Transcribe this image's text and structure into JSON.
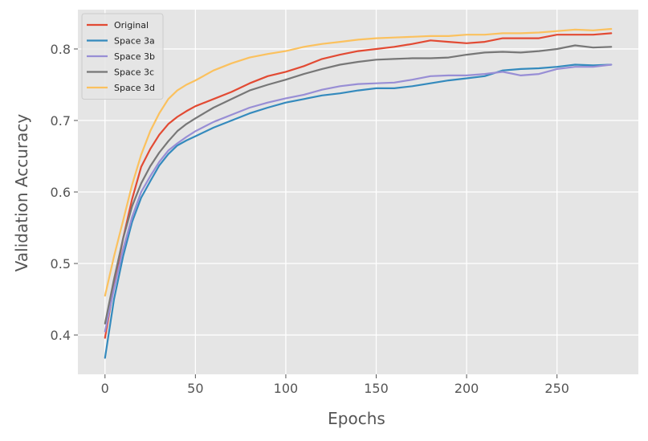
{
  "chart_data": {
    "type": "line",
    "title": "",
    "xlabel": "Epochs",
    "ylabel": "Validation Accuracy",
    "xlim": [
      -15,
      295
    ],
    "ylim": [
      0.345,
      0.855
    ],
    "xticks": [
      0,
      50,
      100,
      150,
      200,
      250
    ],
    "yticks": [
      0.4,
      0.5,
      0.6,
      0.7,
      0.8
    ],
    "ytick_labels": [
      "0.4",
      "0.5",
      "0.6",
      "0.7",
      "0.8"
    ],
    "grid": true,
    "legend_position": "top-left",
    "background": "#e5e5e5",
    "x": [
      0,
      5,
      10,
      15,
      20,
      25,
      30,
      35,
      40,
      45,
      50,
      60,
      70,
      80,
      90,
      100,
      110,
      120,
      130,
      140,
      150,
      160,
      170,
      180,
      190,
      200,
      210,
      220,
      230,
      240,
      250,
      260,
      270,
      280
    ],
    "series": [
      {
        "name": "Original",
        "color": "#e24a33",
        "values": [
          0.396,
          0.47,
          0.535,
          0.59,
          0.635,
          0.66,
          0.68,
          0.695,
          0.705,
          0.713,
          0.72,
          0.73,
          0.74,
          0.752,
          0.762,
          0.768,
          0.776,
          0.786,
          0.792,
          0.797,
          0.8,
          0.803,
          0.807,
          0.812,
          0.81,
          0.808,
          0.81,
          0.815,
          0.815,
          0.815,
          0.82,
          0.82,
          0.82,
          0.822
        ]
      },
      {
        "name": "Space 3a",
        "color": "#348abd",
        "values": [
          0.368,
          0.45,
          0.51,
          0.558,
          0.592,
          0.615,
          0.637,
          0.653,
          0.665,
          0.672,
          0.678,
          0.69,
          0.7,
          0.71,
          0.718,
          0.725,
          0.73,
          0.735,
          0.738,
          0.742,
          0.745,
          0.745,
          0.748,
          0.752,
          0.756,
          0.759,
          0.762,
          0.77,
          0.772,
          0.773,
          0.775,
          0.778,
          0.777,
          0.778
        ]
      },
      {
        "name": "Space 3b",
        "color": "#988ed5",
        "values": [
          0.405,
          0.465,
          0.52,
          0.565,
          0.6,
          0.622,
          0.642,
          0.658,
          0.668,
          0.677,
          0.685,
          0.698,
          0.708,
          0.718,
          0.725,
          0.731,
          0.736,
          0.743,
          0.748,
          0.751,
          0.752,
          0.753,
          0.757,
          0.762,
          0.763,
          0.763,
          0.765,
          0.768,
          0.763,
          0.765,
          0.772,
          0.775,
          0.775,
          0.778
        ]
      },
      {
        "name": "Space 3c",
        "color": "#777777",
        "values": [
          0.416,
          0.478,
          0.535,
          0.58,
          0.612,
          0.636,
          0.655,
          0.671,
          0.685,
          0.695,
          0.703,
          0.718,
          0.73,
          0.742,
          0.75,
          0.757,
          0.765,
          0.772,
          0.778,
          0.782,
          0.785,
          0.786,
          0.787,
          0.787,
          0.788,
          0.792,
          0.795,
          0.796,
          0.795,
          0.797,
          0.8,
          0.805,
          0.802,
          0.803
        ]
      },
      {
        "name": "Space 3d",
        "color": "#fbc15e",
        "values": [
          0.455,
          0.51,
          0.56,
          0.61,
          0.652,
          0.685,
          0.71,
          0.73,
          0.742,
          0.75,
          0.756,
          0.77,
          0.78,
          0.788,
          0.793,
          0.797,
          0.803,
          0.807,
          0.81,
          0.813,
          0.815,
          0.816,
          0.817,
          0.818,
          0.818,
          0.82,
          0.82,
          0.822,
          0.822,
          0.823,
          0.825,
          0.827,
          0.826,
          0.828
        ]
      }
    ]
  }
}
